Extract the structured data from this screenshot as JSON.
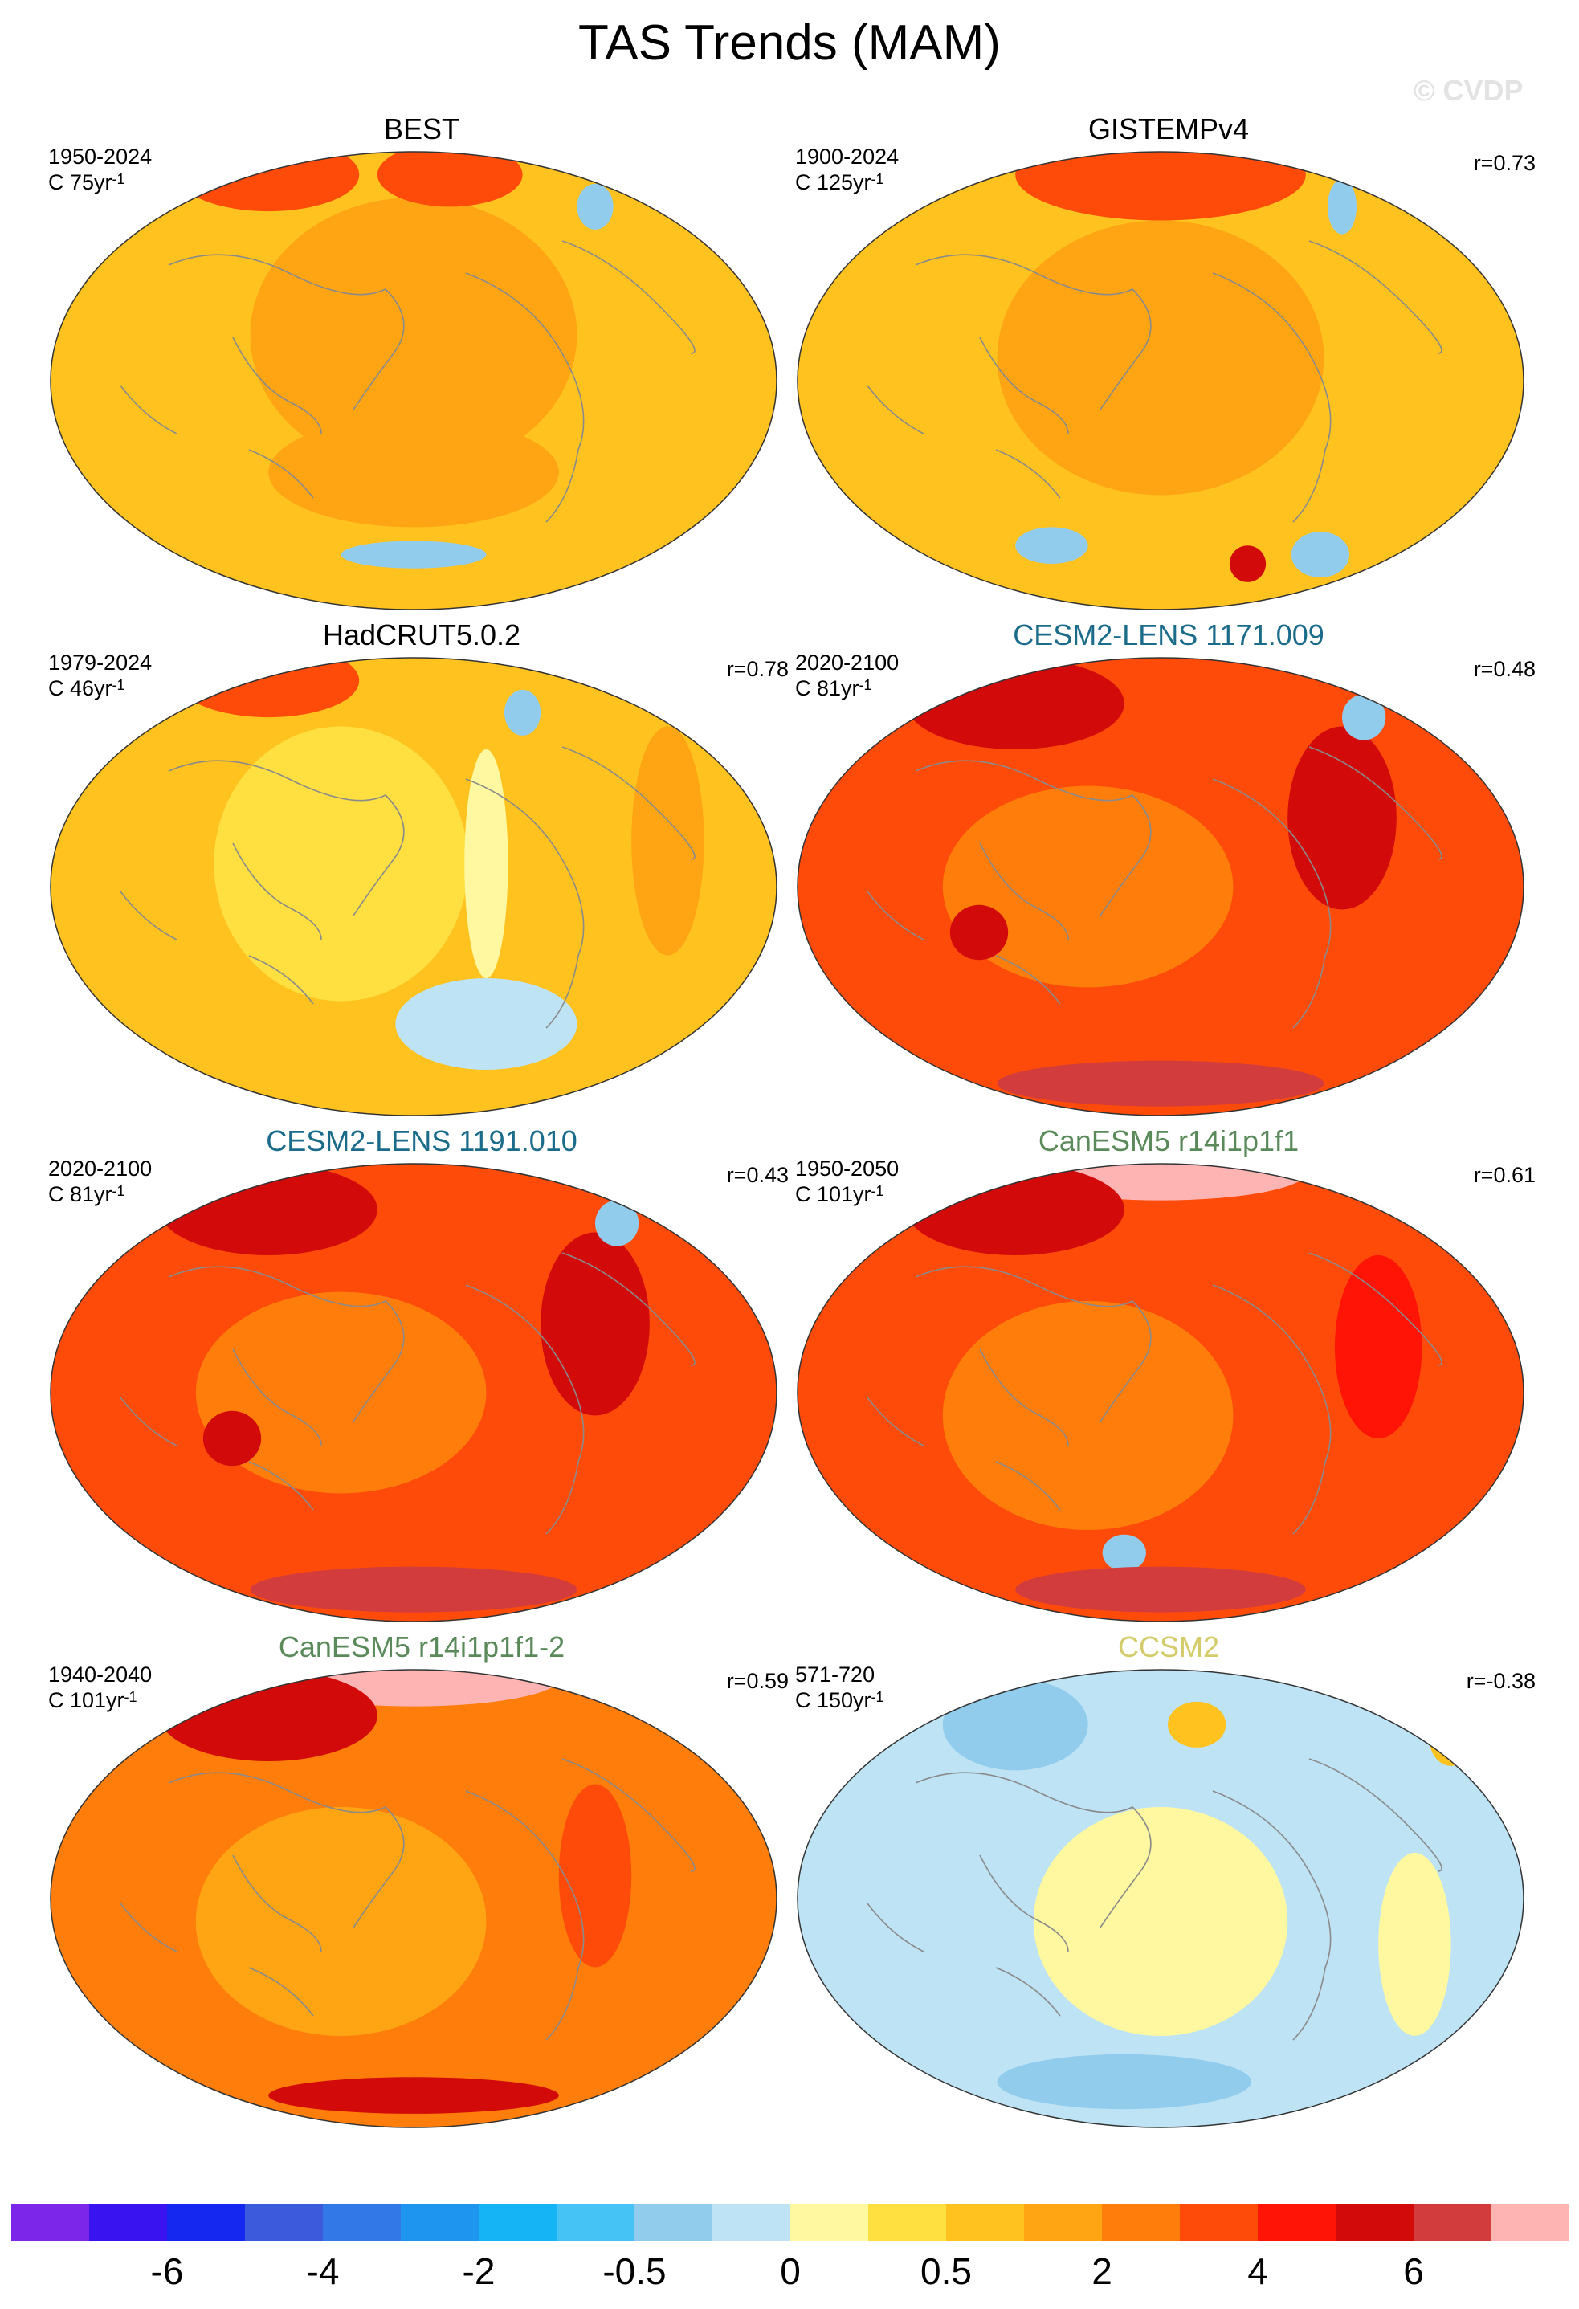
{
  "figure_title": "TAS Trends (MAM)",
  "watermark": "© CVDP",
  "panels": [
    {
      "title": "BEST",
      "title_color": "#000000",
      "period": "1950-2024",
      "scale_prefix": "C 75yr",
      "scale_exp": "-1",
      "corr": "",
      "scheme": "warm"
    },
    {
      "title": "GISTEMPv4",
      "title_color": "#000000",
      "period": "1900-2024",
      "scale_prefix": "C 125yr",
      "scale_exp": "-1",
      "corr": "r=0.73",
      "scheme": "warm2"
    },
    {
      "title": "HadCRUT5.0.2",
      "title_color": "#000000",
      "period": "1979-2024",
      "scale_prefix": "C 46yr",
      "scale_exp": "-1",
      "corr": "r=0.78",
      "scheme": "mild"
    },
    {
      "title": "CESM2-LENS 1171.009",
      "title_color": "#1b6b8a",
      "period": "2020-2100",
      "scale_prefix": "C 81yr",
      "scale_exp": "-1",
      "corr": "r=0.48",
      "scheme": "hot"
    },
    {
      "title": "CESM2-LENS 1191.010",
      "title_color": "#1b6b8a",
      "period": "2020-2100",
      "scale_prefix": "C 81yr",
      "scale_exp": "-1",
      "corr": "r=0.43",
      "scheme": "hot"
    },
    {
      "title": "CanESM5 r14i1p1f1",
      "title_color": "#5a8a5a",
      "period": "1950-2050",
      "scale_prefix": "C 101yr",
      "scale_exp": "-1",
      "corr": "r=0.61",
      "scheme": "hot2"
    },
    {
      "title": "CanESM5 r14i1p1f1-2",
      "title_color": "#5a8a5a",
      "period": "1940-2040",
      "scale_prefix": "C 101yr",
      "scale_exp": "-1",
      "corr": "r=0.59",
      "scheme": "hot3"
    },
    {
      "title": "CCSM2",
      "title_color": "#d4cc6a",
      "period": "571-720",
      "scale_prefix": "C 150yr",
      "scale_exp": "-1",
      "corr": "r=-0.38",
      "scheme": "cool"
    }
  ],
  "colorbar": {
    "colors": [
      "#7b26e8",
      "#3a14f0",
      "#1428f0",
      "#3c5adc",
      "#3278e6",
      "#1e96f0",
      "#14b4f5",
      "#46c3f5",
      "#91ccec",
      "#bde3f5",
      "#fff8a0",
      "#ffe040",
      "#ffc21e",
      "#ffa514",
      "#ff7d0a",
      "#ff4b0a",
      "#ff1405",
      "#d20a0a",
      "#d23c3c",
      "#ffb4b4"
    ],
    "labels": [
      "-6",
      "-4",
      "-2",
      "-0.5",
      "0",
      "0.5",
      "2",
      "4",
      "6"
    ],
    "label_boundaries": [
      2,
      4,
      6,
      8,
      10,
      12,
      14,
      16,
      18
    ]
  }
}
